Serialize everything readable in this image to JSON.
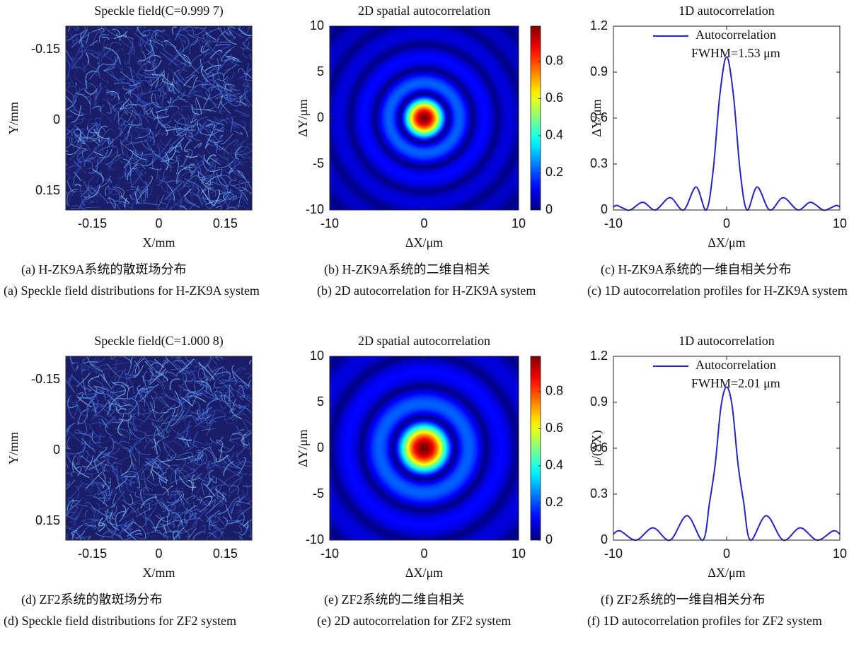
{
  "chart_data": [
    {
      "type": "image",
      "title": "Speckle field(C=0.999 7)",
      "xlabel": "X/mm",
      "ylabel": "Y/mm",
      "xlim": [
        -0.21,
        0.21
      ],
      "ylim": [
        -0.2,
        0.19
      ],
      "y_inverted": true,
      "xticks": [
        -0.15,
        0,
        0.15
      ],
      "yticks": [
        -0.15,
        0,
        0.15
      ],
      "caption_cn": "(a) H-ZK9A系统的散斑场分布",
      "caption_en": "(a) Speckle field distributions for H-ZK9A system"
    },
    {
      "type": "heatmap",
      "title": "2D spatial autocorrelation",
      "xlabel": "ΔX/μm",
      "ylabel": "ΔY/μm",
      "xlim": [
        -10,
        10
      ],
      "ylim": [
        -10,
        10
      ],
      "xticks": [
        -10,
        0,
        10
      ],
      "yticks": [
        -10,
        -5,
        0,
        5,
        10
      ],
      "colorbar_lim": [
        0,
        0.99
      ],
      "colorbar_ticks": [
        0,
        0.2,
        0.4,
        0.6,
        0.8
      ],
      "caption_cn": "(b) H-ZK9A系统的二维自相关",
      "caption_en": "(b) 2D autocorrelation for H-ZK9A system"
    },
    {
      "type": "line",
      "title": "1D autocorrelation",
      "xlabel": "ΔX/μm",
      "ylabel": "ΔY/μm",
      "xlim": [
        -10,
        10
      ],
      "ylim": [
        0,
        1.2
      ],
      "xticks": [
        -10,
        0,
        10
      ],
      "yticks": [
        0,
        0.3,
        0.6,
        0.9,
        1.2
      ],
      "x": [
        -10,
        -9.7,
        -9.1,
        -8.5,
        -7.4,
        -6.3,
        -5.0,
        -3.8,
        -2.7,
        -1.8,
        -1.2,
        -0.6,
        0,
        0.6,
        1.2,
        1.8,
        2.7,
        3.8,
        5.0,
        6.3,
        7.4,
        8.5,
        9.1,
        9.7,
        10
      ],
      "series": [
        {
          "name": "Autocorrelation",
          "color": "#2424c8",
          "values": [
            0.02,
            0.03,
            0.01,
            0,
            0.05,
            0,
            0.08,
            0,
            0.15,
            0,
            0.25,
            0.75,
            1.0,
            0.75,
            0.25,
            0,
            0.15,
            0,
            0.08,
            0,
            0.05,
            0,
            0.01,
            0.03,
            0.02
          ]
        }
      ],
      "annotation": "FWHM=1.53 μm",
      "caption_cn": "(c) H-ZK9A系统的一维自相关分布",
      "caption_en": "(c) 1D autocorrelation profiles for H-ZK9A system"
    },
    {
      "type": "image",
      "title": "Speckle field(C=1.000 8)",
      "xlabel": "X/mm",
      "ylabel": "Y/mm",
      "xlim": [
        -0.21,
        0.21
      ],
      "ylim": [
        -0.2,
        0.19
      ],
      "y_inverted": true,
      "xticks": [
        -0.15,
        0,
        0.15
      ],
      "yticks": [
        -0.15,
        0,
        0.15
      ],
      "caption_cn": "(d) ZF2系统的散斑场分布",
      "caption_en": "(d) Speckle field distributions for ZF2 system"
    },
    {
      "type": "heatmap",
      "title": "2D spatial autocorrelation",
      "xlabel": "ΔX/μm",
      "ylabel": "ΔY/μm",
      "xlim": [
        -10,
        10
      ],
      "ylim": [
        -10,
        10
      ],
      "xticks": [
        -10,
        0,
        10
      ],
      "yticks": [
        -10,
        -5,
        0,
        5,
        10
      ],
      "colorbar_lim": [
        0,
        0.99
      ],
      "colorbar_ticks": [
        0,
        0.2,
        0.4,
        0.6,
        0.8
      ],
      "caption_cn": "(e) ZF2系统的二维自相关",
      "caption_en": "(e) 2D autocorrelation for ZF2 system"
    },
    {
      "type": "line",
      "title": "1D autocorrelation",
      "xlabel": "ΔX/μm",
      "ylabel": "μ/(ΔX)",
      "xlim": [
        -10,
        10
      ],
      "ylim": [
        0,
        1.2
      ],
      "xticks": [
        -10,
        0,
        10
      ],
      "yticks": [
        0,
        0.3,
        0.6,
        0.9,
        1.2
      ],
      "x": [
        -10,
        -9.4,
        -8.0,
        -6.5,
        -5.0,
        -3.5,
        -2.1,
        -1.5,
        -1.0,
        -0.5,
        0,
        0.5,
        1.0,
        1.5,
        2.1,
        3.5,
        5.0,
        6.5,
        8.0,
        9.4,
        10
      ],
      "series": [
        {
          "name": "Autocorrelation",
          "color": "#2424c8",
          "values": [
            0.04,
            0.06,
            0,
            0.08,
            0,
            0.16,
            0,
            0.25,
            0.5,
            0.87,
            1.0,
            0.87,
            0.5,
            0.25,
            0,
            0.16,
            0,
            0.08,
            0,
            0.06,
            0.04
          ]
        }
      ],
      "annotation": "FWHM=2.01 μm",
      "caption_cn": "(f) ZF2系统的一维自相关分布",
      "caption_en": "(f) 1D autocorrelation profiles for ZF2 system"
    }
  ]
}
